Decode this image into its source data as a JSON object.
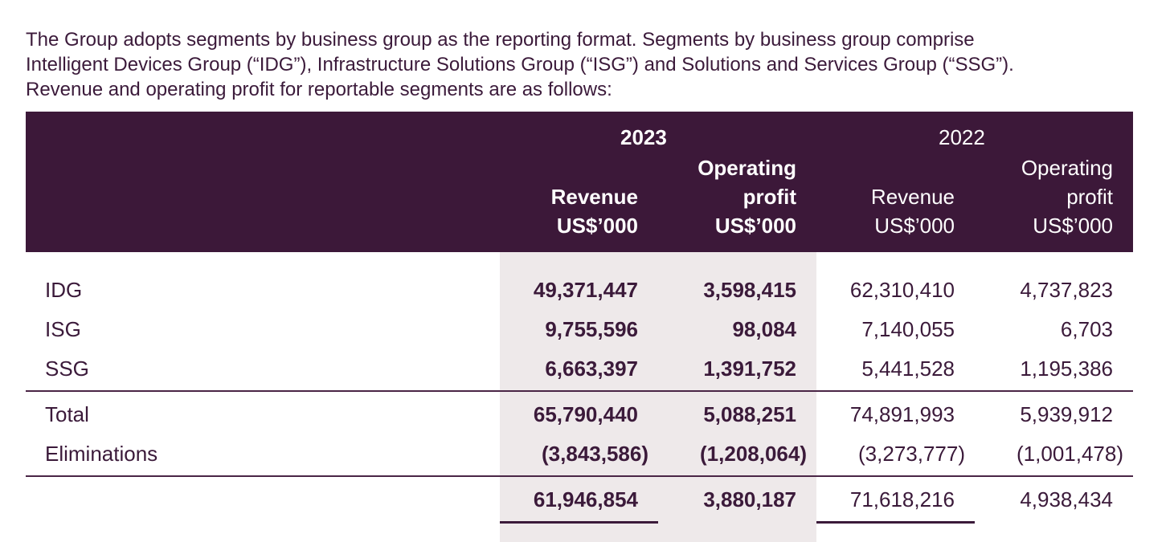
{
  "intro": {
    "line1": "The Group adopts segments by business group as the reporting format. Segments by business group comprise",
    "line2": "Intelligent Devices Group (“IDG”), Infrastructure Solutions Group (“ISG”) and Solutions and Services Group (“SSG”).",
    "line3": "Revenue and operating profit for reportable segments are as follows:"
  },
  "header": {
    "year_2023": "2023",
    "year_2022": "2022",
    "revenue": "Revenue",
    "operating": "Operating",
    "profit": "profit",
    "unit": "US$’000"
  },
  "rows": [
    {
      "label": "IDG",
      "rev23": "49,371,447",
      "op23": "3,598,415",
      "rev22": "62,310,410",
      "op22": "4,737,823"
    },
    {
      "label": "ISG",
      "rev23": "9,755,596",
      "op23": "98,084",
      "rev22": "7,140,055",
      "op22": "6,703"
    },
    {
      "label": "SSG",
      "rev23": "6,663,397",
      "op23": "1,391,752",
      "rev22": "5,441,528",
      "op22": "1,195,386"
    },
    {
      "label": "Total",
      "rev23": "65,790,440",
      "op23": "5,088,251",
      "rev22": "74,891,993",
      "op22": "5,939,912"
    },
    {
      "label": "Eliminations",
      "rev23": "(3,843,586)",
      "op23": "(1,208,064)",
      "rev22": "(3,273,777)",
      "op22": "(1,001,478)"
    },
    {
      "label": "",
      "rev23": "61,946,854",
      "op23": "3,880,187",
      "rev22": "71,618,216",
      "op22": "4,938,434"
    }
  ]
}
